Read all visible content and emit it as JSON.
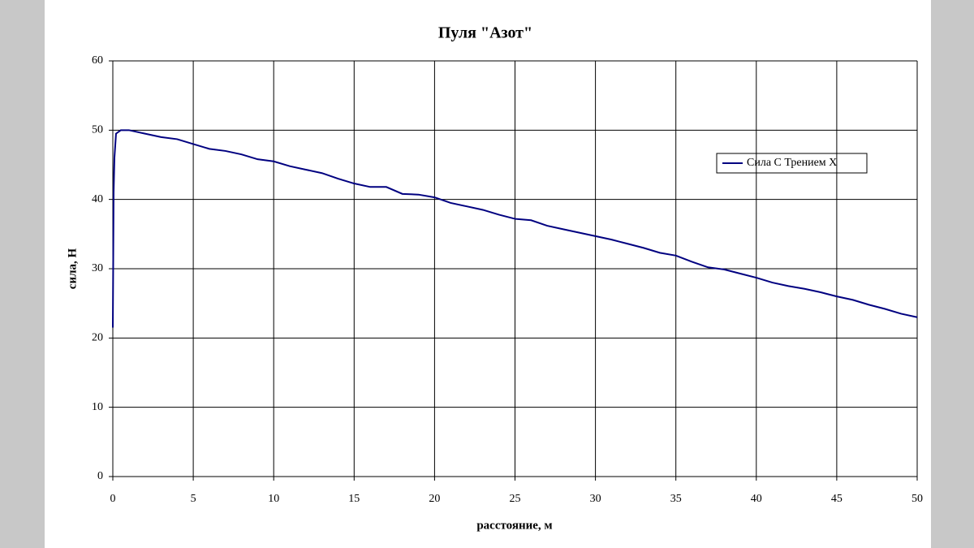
{
  "chart_data": {
    "type": "line",
    "title": "Пуля \"Азот\"",
    "x_label": "расстояние, м",
    "y_label": "сила,  Н",
    "x": [
      0,
      0.05,
      0.1,
      0.2,
      0.5,
      1,
      2,
      3,
      4,
      5,
      6,
      7,
      8,
      9,
      10,
      11,
      12,
      13,
      14,
      15,
      16,
      17,
      18,
      19,
      20,
      21,
      22,
      23,
      24,
      25,
      26,
      27,
      28,
      29,
      30,
      31,
      32,
      33,
      34,
      35,
      36,
      37,
      38,
      39,
      40,
      41,
      42,
      43,
      44,
      45,
      46,
      47,
      48,
      49,
      50
    ],
    "series": [
      {
        "name": "Сила С Трением Х",
        "color": "#000080",
        "values": [
          21.5,
          41,
          46,
          49.5,
          50,
          50,
          49.5,
          49,
          48.7,
          48,
          47.3,
          47,
          46.5,
          45.8,
          45.5,
          44.8,
          44.3,
          43.8,
          43,
          42.3,
          41.8,
          41.8,
          40.8,
          40.7,
          40.3,
          39.5,
          39,
          38.5,
          37.8,
          37.2,
          37,
          36.2,
          35.7,
          35.2,
          34.7,
          34.2,
          33.6,
          33,
          32.3,
          31.9,
          31,
          30.2,
          29.9,
          29.3,
          28.7,
          28,
          27.5,
          27.1,
          26.6,
          26,
          25.5,
          24.8,
          24.2,
          23.5,
          23
        ]
      }
    ],
    "xlim": [
      0,
      50
    ],
    "xticks": [
      0,
      5,
      10,
      15,
      20,
      25,
      30,
      35,
      40,
      45,
      50
    ],
    "ylim": [
      0,
      60
    ],
    "yticks": [
      0,
      10,
      20,
      30,
      40,
      50,
      60
    ],
    "grid": true,
    "legend": "right"
  }
}
